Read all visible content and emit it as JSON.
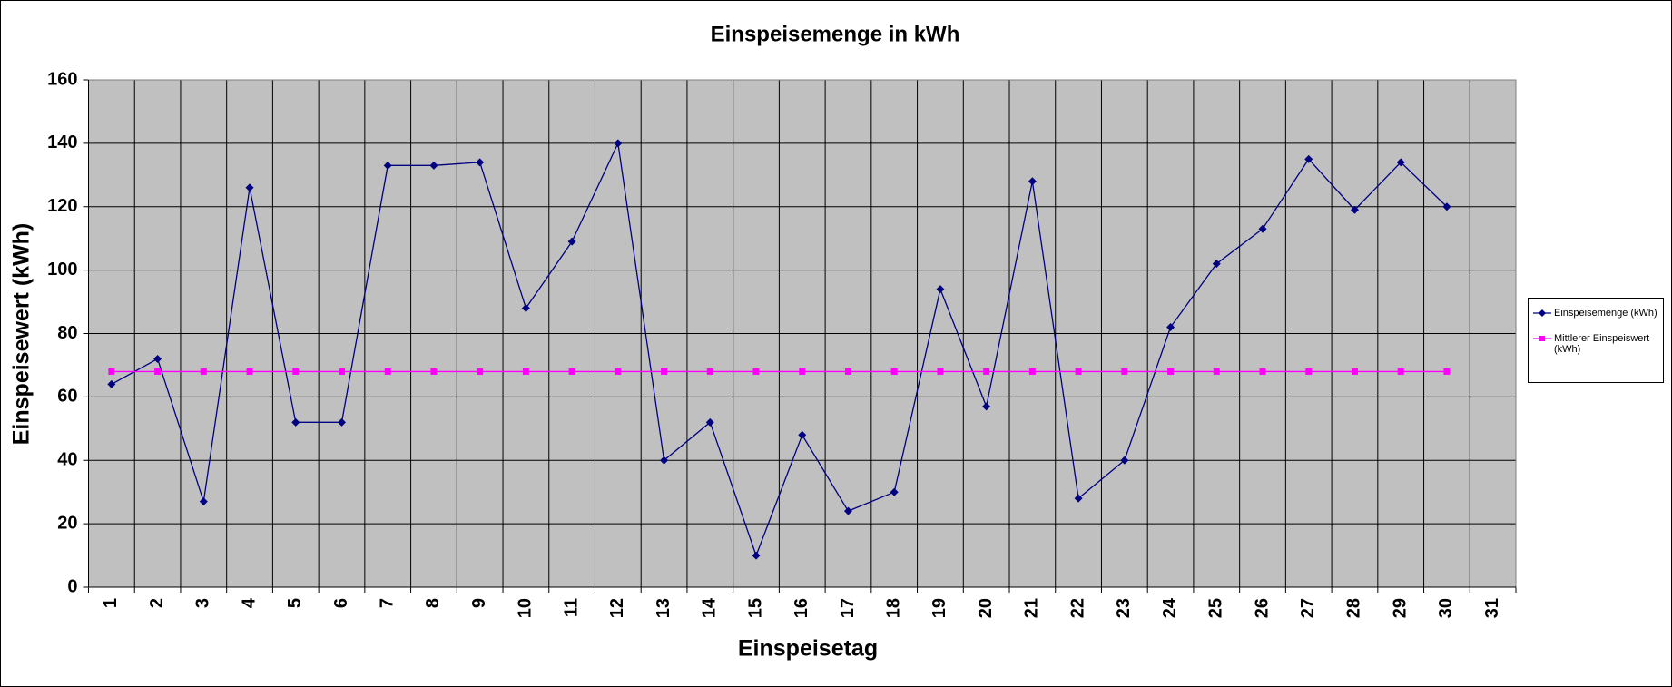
{
  "chart_data": {
    "type": "line",
    "title": "Einspeisemenge in kWh",
    "x_label": "Einspeisetag",
    "y_label": "Einspeisewert  (kWh)",
    "categories": [
      "1",
      "2",
      "3",
      "4",
      "5",
      "6",
      "7",
      "8",
      "9",
      "10",
      "11",
      "12",
      "13",
      "14",
      "15",
      "16",
      "17",
      "18",
      "19",
      "20",
      "21",
      "22",
      "23",
      "24",
      "25",
      "26",
      "27",
      "28",
      "29",
      "30",
      "31"
    ],
    "series": [
      {
        "name": "Einspeisemenge (kWh)",
        "color": "#000080",
        "marker": "diamond",
        "values": [
          64,
          72,
          27,
          126,
          52,
          52,
          133,
          133,
          134,
          88,
          109,
          140,
          40,
          52,
          10,
          48,
          24,
          30,
          94,
          57,
          128,
          28,
          40,
          82,
          102,
          113,
          135,
          119,
          134,
          120,
          null
        ]
      },
      {
        "name": "Mittlerer Einspeiswert (kWh)",
        "color": "#ff00ff",
        "marker": "square",
        "values": [
          68,
          68,
          68,
          68,
          68,
          68,
          68,
          68,
          68,
          68,
          68,
          68,
          68,
          68,
          68,
          68,
          68,
          68,
          68,
          68,
          68,
          68,
          68,
          68,
          68,
          68,
          68,
          68,
          68,
          68,
          null
        ]
      }
    ],
    "ylim": [
      0,
      160
    ],
    "yticks": [
      0,
      20,
      40,
      60,
      80,
      100,
      120,
      140,
      160
    ],
    "grid": true,
    "legend": "right"
  }
}
